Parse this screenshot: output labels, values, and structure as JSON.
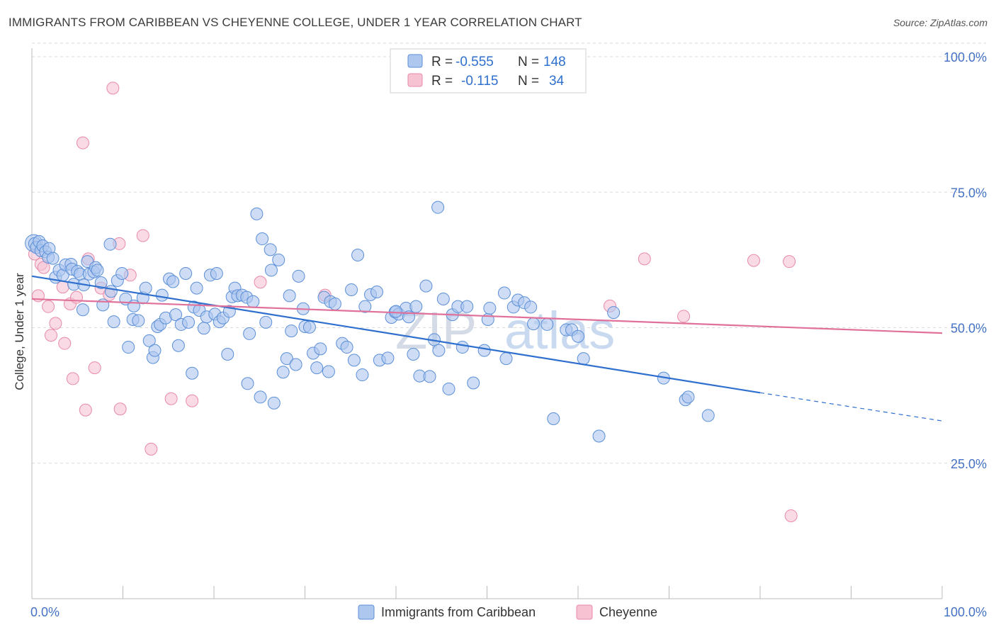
{
  "title": "IMMIGRANTS FROM CARIBBEAN VS CHEYENNE COLLEGE, UNDER 1 YEAR CORRELATION CHART",
  "source": "Source: ZipAtlas.com",
  "watermark": {
    "zip": "ZIP",
    "atlas": "atlas"
  },
  "colors": {
    "blue_fill": "#aec7ee",
    "blue_stroke": "#5b8fd8",
    "blue_line": "#2f6fce",
    "pink_fill": "#f7c3d3",
    "pink_stroke": "#e88aa8",
    "pink_line": "#e0719a",
    "axis_label": "#4472c4",
    "grid": "#d9d9d9"
  },
  "legend": {
    "rows": [
      {
        "r_label": "R =",
        "r_value": "-0.555",
        "n_label": "N =",
        "n_value": "148"
      },
      {
        "r_label": "R =",
        "r_value": "-0.115",
        "n_label": "N =",
        "n_value": "34"
      }
    ]
  },
  "bottom_legend": [
    "Immigrants from Caribbean",
    "Cheyenne"
  ],
  "chart_data": {
    "type": "scatter",
    "title": "IMMIGRANTS FROM CARIBBEAN VS CHEYENNE COLLEGE, UNDER 1 YEAR CORRELATION CHART",
    "xlabel": "",
    "ylabel": "College, Under 1 year",
    "xlim": [
      0,
      100
    ],
    "ylim": [
      0,
      105
    ],
    "x_tick_labels": [
      "0.0%",
      "100.0%"
    ],
    "y_ticks": [
      25,
      50,
      75,
      100
    ],
    "y_tick_labels": [
      "25.0%",
      "50.0%",
      "75.0%",
      "100.0%"
    ],
    "series": [
      {
        "name": "Immigrants from Caribbean",
        "R": -0.555,
        "N": 148,
        "trend": {
          "x0": 0,
          "y0": 59.5,
          "x1": 80,
          "y1": 38.0,
          "dash_to_x": 100,
          "dash_to_y": 32.8
        },
        "points": [
          [
            0.3,
            65.5
          ],
          [
            0.5,
            64.8
          ],
          [
            0.8,
            65.9
          ],
          [
            1.0,
            64.2
          ],
          [
            1.2,
            65.1
          ],
          [
            1.5,
            64.0
          ],
          [
            1.8,
            63.0
          ],
          [
            1.9,
            64.6
          ],
          [
            2.3,
            62.8
          ],
          [
            2.6,
            59.3
          ],
          [
            3.0,
            60.6
          ],
          [
            3.4,
            59.7
          ],
          [
            3.7,
            61.6
          ],
          [
            4.3,
            61.7
          ],
          [
            4.4,
            60.8
          ],
          [
            4.6,
            58.0
          ],
          [
            5.0,
            60.4
          ],
          [
            5.3,
            59.9
          ],
          [
            5.7,
            57.9
          ],
          [
            6.1,
            62.2
          ],
          [
            6.3,
            59.9
          ],
          [
            6.8,
            60.3
          ],
          [
            7.0,
            61.1
          ],
          [
            7.2,
            60.6
          ],
          [
            7.6,
            58.3
          ],
          [
            7.8,
            54.2
          ],
          [
            8.6,
            65.4
          ],
          [
            8.7,
            56.7
          ],
          [
            9.0,
            51.1
          ],
          [
            9.4,
            58.7
          ],
          [
            9.9,
            60.0
          ],
          [
            10.3,
            55.3
          ],
          [
            10.6,
            46.4
          ],
          [
            11.1,
            51.5
          ],
          [
            11.2,
            54.0
          ],
          [
            11.7,
            51.3
          ],
          [
            12.2,
            55.5
          ],
          [
            12.5,
            57.3
          ],
          [
            12.9,
            47.6
          ],
          [
            13.3,
            44.5
          ],
          [
            13.5,
            45.8
          ],
          [
            13.8,
            50.2
          ],
          [
            14.1,
            50.6
          ],
          [
            14.3,
            56.0
          ],
          [
            14.7,
            51.8
          ],
          [
            15.1,
            59.0
          ],
          [
            15.5,
            58.5
          ],
          [
            15.8,
            52.4
          ],
          [
            16.1,
            46.7
          ],
          [
            16.4,
            50.6
          ],
          [
            16.9,
            60.0
          ],
          [
            17.2,
            51.0
          ],
          [
            17.6,
            41.6
          ],
          [
            17.8,
            53.8
          ],
          [
            18.1,
            57.3
          ],
          [
            18.4,
            53.2
          ],
          [
            18.9,
            49.9
          ],
          [
            19.2,
            52.0
          ],
          [
            19.6,
            59.7
          ],
          [
            20.1,
            52.5
          ],
          [
            20.3,
            60.0
          ],
          [
            20.6,
            51.1
          ],
          [
            21.0,
            51.8
          ],
          [
            21.5,
            45.1
          ],
          [
            21.7,
            53.0
          ],
          [
            22.0,
            55.7
          ],
          [
            22.3,
            57.3
          ],
          [
            22.6,
            55.9
          ],
          [
            23.1,
            56.0
          ],
          [
            23.6,
            55.6
          ],
          [
            23.7,
            39.7
          ],
          [
            23.9,
            48.9
          ],
          [
            24.3,
            54.8
          ],
          [
            24.7,
            71.0
          ],
          [
            25.1,
            37.2
          ],
          [
            25.3,
            66.4
          ],
          [
            25.7,
            51.0
          ],
          [
            26.2,
            64.4
          ],
          [
            26.3,
            60.6
          ],
          [
            26.6,
            36.1
          ],
          [
            27.1,
            62.5
          ],
          [
            27.6,
            41.8
          ],
          [
            28.0,
            44.3
          ],
          [
            28.3,
            55.9
          ],
          [
            28.5,
            49.4
          ],
          [
            29.0,
            43.2
          ],
          [
            29.3,
            59.5
          ],
          [
            29.8,
            53.5
          ],
          [
            30.0,
            50.2
          ],
          [
            30.5,
            50.1
          ],
          [
            30.9,
            45.3
          ],
          [
            31.3,
            42.6
          ],
          [
            31.7,
            46.1
          ],
          [
            32.1,
            55.6
          ],
          [
            32.6,
            41.9
          ],
          [
            32.8,
            54.8
          ],
          [
            33.3,
            54.4
          ],
          [
            34.1,
            47.1
          ],
          [
            34.6,
            46.4
          ],
          [
            35.1,
            57.0
          ],
          [
            35.4,
            44.0
          ],
          [
            35.8,
            63.4
          ],
          [
            36.3,
            41.3
          ],
          [
            36.6,
            53.9
          ],
          [
            37.2,
            56.1
          ],
          [
            37.9,
            56.6
          ],
          [
            38.2,
            44.0
          ],
          [
            39.1,
            44.4
          ],
          [
            39.5,
            51.9
          ],
          [
            39.9,
            52.9
          ],
          [
            40.3,
            52.5
          ],
          [
            41.1,
            53.6
          ],
          [
            41.4,
            52.0
          ],
          [
            41.9,
            45.1
          ],
          [
            42.2,
            53.9
          ],
          [
            42.6,
            41.1
          ],
          [
            43.3,
            57.7
          ],
          [
            43.7,
            41.0
          ],
          [
            44.2,
            47.8
          ],
          [
            44.7,
            45.8
          ],
          [
            45.2,
            55.3
          ],
          [
            45.8,
            38.7
          ],
          [
            46.2,
            52.4
          ],
          [
            46.8,
            53.9
          ],
          [
            47.3,
            46.4
          ],
          [
            47.8,
            53.9
          ],
          [
            48.5,
            39.8
          ],
          [
            49.7,
            45.8
          ],
          [
            50.1,
            51.5
          ],
          [
            50.3,
            53.6
          ],
          [
            51.9,
            56.4
          ],
          [
            52.1,
            44.3
          ],
          [
            52.9,
            53.8
          ],
          [
            53.4,
            55.1
          ],
          [
            54.1,
            54.6
          ],
          [
            54.8,
            53.8
          ],
          [
            55.1,
            50.7
          ],
          [
            56.6,
            50.6
          ],
          [
            57.3,
            33.2
          ],
          [
            58.7,
            49.6
          ],
          [
            59.3,
            49.6
          ],
          [
            60.0,
            48.4
          ],
          [
            60.6,
            44.3
          ],
          [
            62.3,
            30.0
          ],
          [
            63.9,
            52.8
          ],
          [
            69.4,
            40.7
          ],
          [
            71.8,
            36.7
          ],
          [
            72.1,
            37.2
          ],
          [
            74.3,
            33.8
          ],
          [
            40.0,
            53.0
          ],
          [
            44.6,
            72.2
          ],
          [
            5.6,
            53.3
          ]
        ]
      },
      {
        "name": "Cheyenne",
        "R": -0.115,
        "N": 34,
        "trend": {
          "x0": 0,
          "y0": 55.3,
          "x1": 100,
          "y1": 49.0
        },
        "points": [
          [
            0.3,
            63.6
          ],
          [
            0.7,
            55.9
          ],
          [
            1.0,
            61.7
          ],
          [
            1.3,
            61.1
          ],
          [
            1.8,
            53.9
          ],
          [
            2.1,
            48.6
          ],
          [
            2.6,
            50.8
          ],
          [
            3.4,
            57.5
          ],
          [
            3.6,
            47.1
          ],
          [
            4.2,
            54.4
          ],
          [
            4.5,
            40.6
          ],
          [
            4.9,
            55.6
          ],
          [
            5.6,
            84.1
          ],
          [
            5.9,
            34.8
          ],
          [
            6.2,
            62.7
          ],
          [
            6.9,
            42.6
          ],
          [
            7.6,
            57.3
          ],
          [
            8.5,
            56.1
          ],
          [
            8.9,
            94.2
          ],
          [
            9.6,
            65.5
          ],
          [
            9.7,
            35.0
          ],
          [
            10.8,
            59.7
          ],
          [
            12.2,
            67.0
          ],
          [
            13.1,
            27.6
          ],
          [
            15.3,
            36.9
          ],
          [
            17.6,
            36.5
          ],
          [
            25.1,
            58.4
          ],
          [
            32.2,
            56.0
          ],
          [
            63.5,
            54.0
          ],
          [
            67.3,
            62.7
          ],
          [
            71.6,
            52.1
          ],
          [
            79.3,
            62.4
          ],
          [
            83.2,
            62.2
          ],
          [
            83.4,
            15.3
          ]
        ]
      }
    ]
  }
}
